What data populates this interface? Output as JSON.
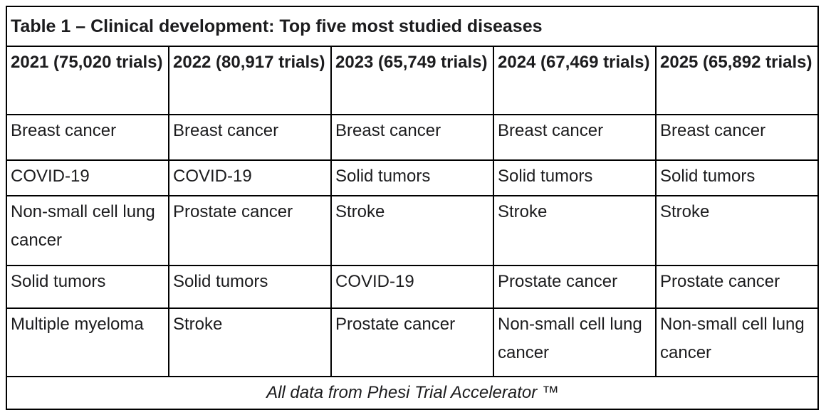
{
  "chart_data": {
    "type": "table",
    "title": "Table 1 – Clinical development: Top five most studied diseases",
    "columns": [
      "2021 (75,020 trials)",
      "2022 (80,917 trials)",
      "2023 (65,749 trials)",
      "2024 (67,469 trials)",
      "2025 (65,892 trials)"
    ],
    "rows": [
      [
        "Breast cancer",
        "Breast cancer",
        "Breast cancer",
        "Breast cancer",
        "Breast cancer"
      ],
      [
        "COVID-19",
        "COVID-19",
        "Solid tumors",
        "Solid tumors",
        "Solid tumors"
      ],
      [
        "Non-small cell lung cancer",
        "Prostate cancer",
        "Stroke",
        "Stroke",
        "Stroke"
      ],
      [
        "Solid tumors",
        "Solid tumors",
        "COVID-19",
        "Prostate cancer",
        "Prostate cancer"
      ],
      [
        "Multiple myeloma",
        "Stroke",
        "Prostate cancer",
        "Non-small cell lung cancer",
        "Non-small cell lung cancer"
      ]
    ],
    "footer_note": "All data from Phesi Trial Accelerator ™",
    "trial_counts": {
      "2021": 75020,
      "2022": 80917,
      "2023": 65749,
      "2024": 67469,
      "2025": 65892
    }
  },
  "colors": {
    "border": "#000000",
    "text": "#1c1c1e",
    "background": "#ffffff"
  }
}
